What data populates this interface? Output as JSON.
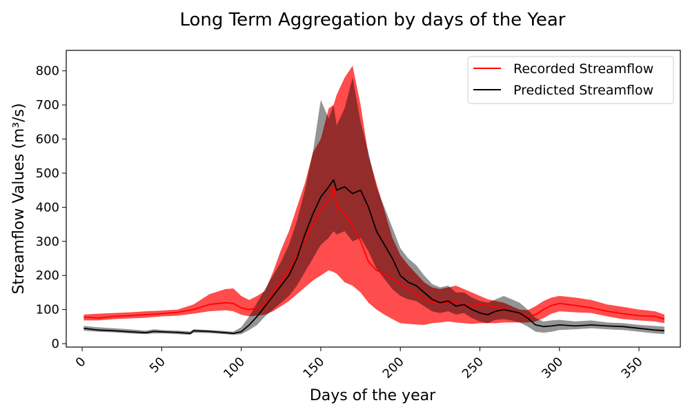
{
  "chart_data": {
    "type": "line",
    "title": "Long Term Aggregation by days of the Year",
    "xlabel": "Days of the year",
    "ylabel": "Streamflow Values (m³/s)",
    "xlim": [
      -10,
      376
    ],
    "ylim": [
      -10,
      860
    ],
    "xticks": [
      0,
      50,
      100,
      150,
      200,
      250,
      300,
      350
    ],
    "yticks": [
      0,
      100,
      200,
      300,
      400,
      500,
      600,
      700,
      800
    ],
    "grid": false,
    "legend_position": "top-right",
    "series": [
      {
        "name": "Recorded Streamflow",
        "color": "#ff0000",
        "x": [
          1,
          10,
          20,
          30,
          40,
          50,
          60,
          70,
          80,
          90,
          95,
          100,
          105,
          110,
          115,
          120,
          125,
          130,
          135,
          140,
          145,
          150,
          155,
          158,
          160,
          165,
          170,
          175,
          180,
          185,
          190,
          195,
          200,
          205,
          210,
          215,
          220,
          225,
          230,
          235,
          240,
          245,
          250,
          255,
          260,
          265,
          270,
          275,
          280,
          285,
          290,
          295,
          300,
          310,
          320,
          330,
          340,
          350,
          360,
          366
        ],
        "mean": [
          78,
          75,
          80,
          82,
          85,
          88,
          92,
          100,
          115,
          120,
          118,
          105,
          100,
          105,
          115,
          150,
          185,
          215,
          260,
          305,
          350,
          395,
          420,
          460,
          400,
          380,
          345,
          300,
          240,
          215,
          205,
          190,
          175,
          160,
          145,
          130,
          120,
          118,
          120,
          120,
          115,
          112,
          115,
          112,
          108,
          102,
          95,
          90,
          80,
          85,
          100,
          112,
          118,
          112,
          105,
          95,
          88,
          82,
          80,
          72
        ],
        "lower": [
          68,
          68,
          72,
          74,
          76,
          80,
          82,
          88,
          95,
          98,
          95,
          85,
          80,
          82,
          85,
          95,
          110,
          125,
          145,
          165,
          185,
          200,
          215,
          210,
          205,
          180,
          170,
          150,
          120,
          100,
          85,
          72,
          60,
          58,
          56,
          55,
          60,
          62,
          65,
          62,
          60,
          58,
          60,
          60,
          60,
          62,
          62,
          62,
          62,
          65,
          75,
          88,
          95,
          92,
          90,
          80,
          72,
          68,
          65,
          60
        ],
        "upper": [
          85,
          88,
          90,
          92,
          95,
          97,
          100,
          115,
          145,
          160,
          162,
          140,
          128,
          140,
          155,
          210,
          275,
          330,
          400,
          470,
          560,
          600,
          690,
          700,
          730,
          780,
          815,
          700,
          550,
          470,
          390,
          310,
          260,
          230,
          205,
          180,
          165,
          160,
          165,
          170,
          160,
          150,
          140,
          130,
          125,
          120,
          110,
          100,
          98,
          110,
          125,
          135,
          140,
          135,
          128,
          115,
          108,
          100,
          95,
          85
        ]
      },
      {
        "name": "Predicted Streamflow",
        "color": "#000000",
        "x": [
          1,
          10,
          20,
          30,
          40,
          45,
          50,
          60,
          68,
          70,
          80,
          90,
          95,
          100,
          105,
          110,
          115,
          120,
          125,
          130,
          135,
          140,
          145,
          150,
          155,
          158,
          160,
          165,
          170,
          175,
          180,
          185,
          190,
          195,
          200,
          205,
          210,
          215,
          220,
          225,
          230,
          235,
          240,
          245,
          250,
          255,
          260,
          265,
          270,
          275,
          280,
          285,
          290,
          295,
          300,
          310,
          320,
          330,
          340,
          350,
          360,
          366
        ],
        "mean": [
          45,
          40,
          38,
          35,
          32,
          36,
          35,
          33,
          30,
          38,
          36,
          32,
          30,
          35,
          55,
          80,
          110,
          140,
          170,
          200,
          250,
          320,
          380,
          430,
          460,
          480,
          450,
          460,
          440,
          450,
          400,
          330,
          290,
          250,
          200,
          180,
          170,
          150,
          130,
          120,
          125,
          110,
          115,
          100,
          90,
          85,
          95,
          100,
          95,
          90,
          75,
          55,
          50,
          52,
          55,
          52,
          55,
          52,
          50,
          45,
          40,
          38
        ],
        "lower": [
          38,
          35,
          33,
          30,
          28,
          30,
          30,
          28,
          26,
          32,
          31,
          28,
          26,
          28,
          40,
          55,
          80,
          100,
          120,
          140,
          170,
          210,
          250,
          290,
          310,
          330,
          320,
          330,
          300,
          310,
          270,
          220,
          190,
          160,
          140,
          130,
          125,
          110,
          95,
          90,
          95,
          85,
          90,
          75,
          65,
          60,
          70,
          72,
          68,
          62,
          50,
          35,
          32,
          35,
          40,
          42,
          45,
          42,
          40,
          35,
          30,
          28
        ],
        "upper": [
          52,
          48,
          45,
          42,
          38,
          42,
          40,
          38,
          36,
          42,
          40,
          37,
          35,
          48,
          80,
          120,
          160,
          200,
          240,
          290,
          360,
          450,
          560,
          715,
          660,
          700,
          640,
          690,
          780,
          650,
          560,
          460,
          400,
          340,
          280,
          250,
          230,
          200,
          175,
          165,
          170,
          150,
          150,
          135,
          125,
          120,
          130,
          140,
          130,
          120,
          100,
          75,
          65,
          68,
          70,
          65,
          68,
          62,
          60,
          55,
          52,
          50
        ]
      }
    ]
  }
}
